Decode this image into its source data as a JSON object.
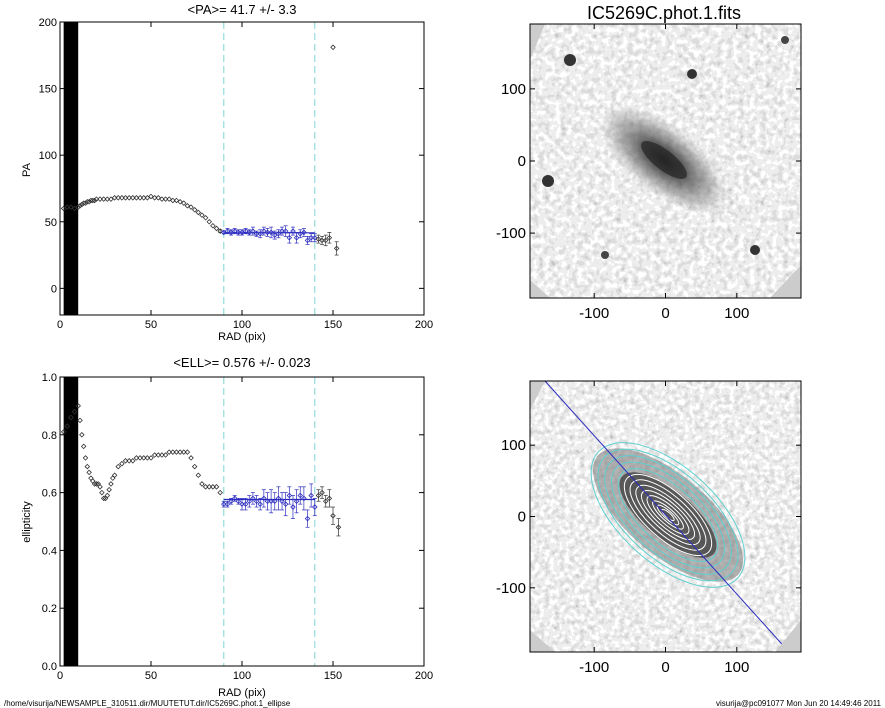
{
  "footer": {
    "path": "/home/visurija/NEWSAMPLE_310511.dir/MUUTETUT.dir/IC5269C.phot.1_ellipse",
    "stamp": "visurija@pc091077  Mon Jun 20 14:49:46 2011"
  },
  "colors": {
    "fit_line": "#2b2bbf",
    "marker_range": "#7fd4d4",
    "markers": "#333333",
    "inner_markers": "#2b2bbf",
    "ellipses": "#5fd0d0"
  },
  "chart_data": [
    {
      "type": "scatter",
      "title": "<PA>=  41.7 +/-   3.3",
      "xlabel": "RAD (pix)",
      "ylabel": "PA",
      "xlim": [
        0,
        200
      ],
      "ylim": [
        -20,
        200
      ],
      "xticks": [
        "0",
        "50",
        "100",
        "150",
        "200"
      ],
      "yticks": [
        "0",
        "50",
        "100",
        "150",
        "200"
      ],
      "mean_value": 41.7,
      "fit_range": [
        90,
        140
      ],
      "marker_lines": [
        90,
        140
      ],
      "x": [
        2,
        4,
        6,
        8,
        10,
        11,
        12,
        13,
        14,
        15,
        16,
        17,
        18,
        19,
        20,
        22,
        24,
        26,
        28,
        30,
        32,
        34,
        36,
        38,
        40,
        42,
        44,
        46,
        48,
        50,
        52,
        54,
        56,
        58,
        60,
        62,
        64,
        66,
        68,
        70,
        72,
        74,
        76,
        78,
        80,
        82,
        84,
        86,
        88,
        90,
        92,
        94,
        96,
        98,
        100,
        102,
        104,
        106,
        108,
        110,
        112,
        114,
        116,
        118,
        120,
        122,
        124,
        126,
        128,
        130,
        132,
        134,
        136,
        138,
        140,
        142,
        144,
        146,
        148,
        150,
        152
      ],
      "y": [
        60,
        61,
        61,
        60,
        61,
        62,
        63,
        64,
        64,
        65,
        65,
        66,
        66,
        66,
        67,
        67,
        67,
        67,
        67,
        68,
        68,
        68,
        68,
        68,
        68,
        68,
        68,
        68,
        68,
        69,
        68,
        68,
        67,
        67,
        67,
        66,
        66,
        65,
        64,
        62,
        61,
        59,
        57,
        55,
        53,
        50,
        47,
        45,
        43,
        42,
        43,
        42,
        43,
        42,
        42,
        43,
        42,
        43,
        41,
        41,
        43,
        42,
        42,
        40,
        41,
        43,
        43,
        38,
        43,
        38,
        41,
        42,
        36,
        38,
        38,
        37,
        36,
        36,
        38,
        181,
        30
      ],
      "err": [
        0,
        0,
        0,
        0,
        0,
        0,
        0,
        0,
        0,
        0,
        0,
        0,
        0,
        0,
        0,
        0,
        0,
        0,
        0,
        0,
        0,
        0,
        0,
        0,
        0,
        0,
        0,
        0,
        0,
        0,
        0,
        0,
        0,
        0,
        0,
        0,
        0,
        0,
        0,
        0,
        0,
        0,
        0,
        0,
        0,
        0,
        0,
        0,
        1,
        1,
        2,
        2,
        2,
        2,
        2,
        2,
        2,
        3,
        2,
        3,
        3,
        3,
        4,
        3,
        3,
        3,
        4,
        4,
        3,
        4,
        3,
        3,
        3,
        3,
        3,
        3,
        3,
        4,
        4,
        0,
        5
      ]
    },
    {
      "type": "scatter",
      "title": "<ELL>= 0.576 +/-  0.023",
      "xlabel": "RAD (pix)",
      "ylabel": "ellipticity",
      "xlim": [
        0,
        200
      ],
      "ylim": [
        0.0,
        1.0
      ],
      "xticks": [
        "0",
        "50",
        "100",
        "150",
        "200"
      ],
      "yticks": [
        "0.0",
        "0.2",
        "0.4",
        "0.6",
        "0.8",
        "1.0"
      ],
      "mean_value": 0.576,
      "fit_range": [
        90,
        140
      ],
      "marker_lines": [
        90,
        140
      ],
      "x": [
        2,
        4,
        6,
        8,
        10,
        11,
        12,
        13,
        14,
        15,
        16,
        17,
        18,
        19,
        20,
        21,
        22,
        23,
        24,
        25,
        26,
        27,
        28,
        29,
        30,
        32,
        34,
        36,
        38,
        40,
        42,
        44,
        46,
        48,
        50,
        52,
        54,
        56,
        58,
        60,
        62,
        64,
        66,
        68,
        70,
        72,
        74,
        76,
        78,
        80,
        82,
        84,
        86,
        88,
        90,
        92,
        94,
        96,
        98,
        100,
        102,
        104,
        106,
        108,
        110,
        112,
        114,
        116,
        118,
        120,
        122,
        124,
        126,
        128,
        130,
        132,
        134,
        136,
        138,
        140,
        142,
        144,
        146,
        148,
        150,
        153
      ],
      "y": [
        0.81,
        0.83,
        0.86,
        0.88,
        0.9,
        0.85,
        0.8,
        0.76,
        0.72,
        0.69,
        0.67,
        0.65,
        0.64,
        0.63,
        0.63,
        0.63,
        0.62,
        0.6,
        0.58,
        0.58,
        0.59,
        0.61,
        0.63,
        0.65,
        0.66,
        0.69,
        0.7,
        0.71,
        0.71,
        0.71,
        0.72,
        0.72,
        0.72,
        0.72,
        0.72,
        0.73,
        0.73,
        0.73,
        0.73,
        0.74,
        0.74,
        0.74,
        0.74,
        0.74,
        0.74,
        0.72,
        0.69,
        0.66,
        0.63,
        0.62,
        0.62,
        0.62,
        0.62,
        0.6,
        0.56,
        0.56,
        0.57,
        0.58,
        0.57,
        0.56,
        0.56,
        0.57,
        0.58,
        0.57,
        0.56,
        0.58,
        0.57,
        0.57,
        0.57,
        0.58,
        0.57,
        0.56,
        0.59,
        0.55,
        0.57,
        0.59,
        0.58,
        0.51,
        0.59,
        0.55,
        0.59,
        0.6,
        0.57,
        0.58,
        0.52,
        0.48
      ],
      "err": [
        0,
        0,
        0,
        0,
        0,
        0,
        0,
        0,
        0,
        0,
        0,
        0,
        0,
        0,
        0,
        0,
        0,
        0,
        0,
        0,
        0,
        0,
        0,
        0,
        0,
        0,
        0,
        0,
        0,
        0,
        0,
        0,
        0,
        0,
        0,
        0,
        0,
        0,
        0,
        0,
        0,
        0,
        0,
        0,
        0,
        0,
        0,
        0,
        0,
        0,
        0,
        0,
        0,
        0,
        0.01,
        0.01,
        0.01,
        0.01,
        0.01,
        0.02,
        0.02,
        0.02,
        0.02,
        0.02,
        0.02,
        0.03,
        0.03,
        0.04,
        0.03,
        0.04,
        0.03,
        0.04,
        0.03,
        0.04,
        0.04,
        0.03,
        0.04,
        0.03,
        0.04,
        0.03,
        0.02,
        0.02,
        0.02,
        0.03,
        0.03,
        0.03
      ]
    },
    {
      "type": "heatmap",
      "title": "IC5269C.phot.1.fits",
      "xlim": [
        -190,
        190
      ],
      "ylim": [
        -190,
        190
      ],
      "xticks": [
        "-100",
        "0",
        "100"
      ],
      "yticks": [
        "-100",
        "0",
        "100"
      ]
    },
    {
      "type": "heatmap",
      "title": "",
      "xlim": [
        -190,
        190
      ],
      "ylim": [
        -190,
        190
      ],
      "xticks": [
        "-100",
        "0",
        "100"
      ],
      "yticks": [
        "-100",
        "0",
        "100"
      ],
      "overlay": "fitted ellipse isophotes with major-axis line"
    }
  ]
}
